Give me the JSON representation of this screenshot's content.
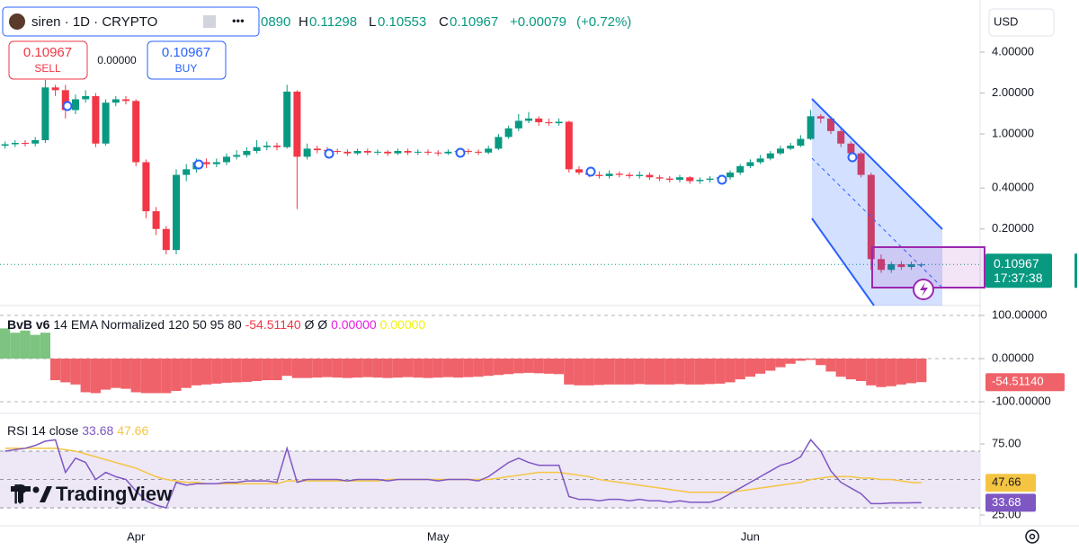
{
  "header": {
    "symbol": "siren · 1D · CRYPTO",
    "open_fragment": "0890",
    "h": "H",
    "l": "L",
    "c": "C",
    "change": "+0.00079",
    "change_pct": "(+0.72%)"
  },
  "trade": {
    "sell_price": "0.10967",
    "sell": "SELL",
    "spread": "0.00000",
    "buy_price": "0.10967",
    "buy": "BUY"
  },
  "currency": "USD",
  "logo": "TradingView",
  "chart_data": [
    {
      "type": "candlestick",
      "log_scale": true,
      "categories": [
        null,
        null,
        null,
        null,
        null,
        null,
        null,
        null,
        null,
        null,
        null,
        null,
        null,
        "Apr",
        null,
        null,
        null,
        null,
        null,
        null,
        null,
        null,
        null,
        null,
        null,
        null,
        null,
        null,
        null,
        null,
        null,
        null,
        null,
        null,
        null,
        null,
        null,
        null,
        null,
        null,
        null,
        null,
        null,
        "May",
        null,
        null,
        null,
        null,
        null,
        null,
        null,
        null,
        null,
        null,
        null,
        null,
        null,
        null,
        null,
        null,
        null,
        null,
        null,
        null,
        null,
        null,
        null,
        null,
        null,
        null,
        null,
        null,
        null,
        null,
        "Jun",
        null,
        null,
        null,
        null,
        null,
        null,
        null,
        null,
        null,
        null,
        null,
        null,
        null,
        null,
        null,
        null,
        null
      ],
      "open": [
        0.82,
        0.84,
        0.86,
        0.85,
        0.9,
        2.2,
        2.1,
        1.5,
        1.8,
        1.9,
        0.85,
        1.7,
        1.8,
        1.75,
        0.62,
        0.27,
        0.2,
        0.14,
        0.5,
        0.55,
        0.62,
        0.6,
        0.62,
        0.68,
        0.7,
        0.75,
        0.8,
        0.82,
        0.8,
        2.05,
        0.68,
        0.78,
        0.76,
        0.75,
        0.74,
        0.72,
        0.75,
        0.73,
        0.74,
        0.72,
        0.75,
        0.73,
        0.74,
        0.73,
        0.72,
        0.74,
        0.75,
        0.74,
        0.73,
        0.78,
        0.95,
        1.1,
        1.25,
        1.3,
        1.22,
        1.2,
        1.23,
        0.55,
        0.52,
        0.5,
        0.49,
        0.51,
        0.5,
        0.49,
        0.5,
        0.48,
        0.47,
        0.46,
        0.48,
        0.45,
        0.46,
        0.47,
        0.48,
        0.52,
        0.58,
        0.62,
        0.66,
        0.72,
        0.78,
        0.82,
        0.92,
        1.35,
        1.3,
        1.05,
        0.85,
        0.72,
        0.5,
        0.12,
        0.1,
        0.11,
        0.105,
        0.1089
      ],
      "high": [
        0.88,
        0.9,
        0.9,
        0.95,
        2.5,
        2.3,
        2.3,
        1.95,
        2.1,
        2.0,
        1.8,
        1.9,
        1.9,
        1.8,
        0.65,
        0.29,
        0.21,
        0.55,
        0.6,
        0.66,
        0.66,
        0.66,
        0.72,
        0.76,
        0.8,
        0.9,
        0.88,
        0.86,
        2.3,
        2.1,
        0.85,
        0.82,
        0.8,
        0.78,
        0.77,
        0.78,
        0.78,
        0.77,
        0.76,
        0.78,
        0.78,
        0.77,
        0.77,
        0.76,
        0.77,
        0.78,
        0.78,
        0.77,
        0.82,
        1.0,
        1.15,
        1.4,
        1.45,
        1.35,
        1.3,
        1.3,
        1.25,
        0.58,
        0.55,
        0.53,
        0.54,
        0.53,
        0.52,
        0.53,
        0.52,
        0.5,
        0.49,
        0.5,
        0.49,
        0.48,
        0.49,
        0.5,
        0.54,
        0.6,
        0.65,
        0.7,
        0.75,
        0.82,
        0.86,
        0.98,
        1.5,
        1.4,
        1.35,
        1.1,
        0.88,
        0.74,
        0.52,
        0.13,
        0.115,
        0.116,
        0.115,
        0.11298
      ],
      "low": [
        0.78,
        0.8,
        0.81,
        0.81,
        0.86,
        1.9,
        1.3,
        1.4,
        1.7,
        0.8,
        0.82,
        1.6,
        1.65,
        0.58,
        0.24,
        0.18,
        0.13,
        0.13,
        0.45,
        0.52,
        0.56,
        0.57,
        0.59,
        0.65,
        0.67,
        0.72,
        0.76,
        0.76,
        0.78,
        0.28,
        0.65,
        0.72,
        0.72,
        0.71,
        0.69,
        0.7,
        0.7,
        0.7,
        0.69,
        0.7,
        0.7,
        0.7,
        0.7,
        0.69,
        0.7,
        0.71,
        0.71,
        0.7,
        0.71,
        0.76,
        0.92,
        1.05,
        1.2,
        1.15,
        1.15,
        1.15,
        0.52,
        0.5,
        0.48,
        0.47,
        0.47,
        0.48,
        0.47,
        0.47,
        0.46,
        0.45,
        0.44,
        0.44,
        0.43,
        0.43,
        0.44,
        0.45,
        0.46,
        0.5,
        0.56,
        0.6,
        0.64,
        0.7,
        0.76,
        0.8,
        0.9,
        1.2,
        1.0,
        0.8,
        0.68,
        0.48,
        0.1,
        0.095,
        0.095,
        0.1,
        0.1,
        0.10553
      ],
      "close": [
        0.84,
        0.86,
        0.85,
        0.9,
        2.2,
        2.1,
        1.5,
        1.8,
        1.9,
        0.85,
        1.7,
        1.8,
        1.75,
        0.62,
        0.27,
        0.2,
        0.14,
        0.5,
        0.55,
        0.62,
        0.6,
        0.62,
        0.68,
        0.7,
        0.75,
        0.8,
        0.82,
        0.8,
        2.05,
        0.68,
        0.78,
        0.76,
        0.75,
        0.74,
        0.72,
        0.75,
        0.73,
        0.74,
        0.72,
        0.75,
        0.73,
        0.74,
        0.73,
        0.72,
        0.74,
        0.75,
        0.74,
        0.73,
        0.78,
        0.95,
        1.1,
        1.25,
        1.3,
        1.22,
        1.2,
        1.23,
        0.55,
        0.52,
        0.5,
        0.49,
        0.51,
        0.5,
        0.49,
        0.5,
        0.48,
        0.47,
        0.46,
        0.48,
        0.45,
        0.46,
        0.47,
        0.48,
        0.52,
        0.58,
        0.62,
        0.66,
        0.72,
        0.78,
        0.82,
        0.92,
        1.35,
        1.3,
        1.05,
        0.85,
        0.72,
        0.5,
        0.12,
        0.1,
        0.11,
        0.105,
        0.11,
        0.10967
      ],
      "up_color": "#089981",
      "down_color": "#f23645",
      "ylim": [
        0.0563,
        8.57
      ],
      "yticks": [
        {
          "value": 4,
          "label": "4.00000"
        },
        {
          "value": 2,
          "label": "2.00000"
        },
        {
          "value": 1,
          "label": "1.00000"
        },
        {
          "value": 0.4,
          "label": "0.40000"
        },
        {
          "value": 0.2,
          "label": "0.20000"
        }
      ],
      "countdown": "17:37:38"
    },
    {
      "type": "histogram",
      "title": "BvB v6",
      "subtitle": "14 EMA Normalized 120 50 95 80",
      "legend_value": "-54.51140",
      "legend_extra": [
        {
          "text": "Ø Ø",
          "color": "#131722"
        },
        {
          "text": "0.00000",
          "color": "#e91ee6"
        },
        {
          "text": "0.00000",
          "color": "#f2f20a"
        }
      ],
      "values": [
        70,
        60,
        65,
        55,
        60,
        -50,
        -55,
        -60,
        -78,
        -80,
        -72,
        -68,
        -70,
        -78,
        -80,
        -80,
        -80,
        -75,
        -68,
        -62,
        -60,
        -58,
        -56,
        -55,
        -54,
        -52,
        -50,
        -50,
        -40,
        -45,
        -45,
        -44,
        -43,
        -44,
        -45,
        -44,
        -43,
        -44,
        -45,
        -44,
        -43,
        -44,
        -45,
        -44,
        -43,
        -44,
        -43,
        -42,
        -40,
        -38,
        -36,
        -34,
        -33,
        -34,
        -35,
        -36,
        -60,
        -62,
        -62,
        -61,
        -60,
        -60,
        -60,
        -59,
        -60,
        -60,
        -60,
        -59,
        -60,
        -60,
        -59,
        -58,
        -55,
        -48,
        -42,
        -35,
        -28,
        -20,
        -12,
        -5,
        -3,
        -15,
        -30,
        -42,
        -48,
        -52,
        -62,
        -66,
        -64,
        -60,
        -57,
        -54.5114
      ],
      "pos_color": "#7cc47f",
      "neg_color": "#f0626a",
      "ylim": [
        -127,
        118.75
      ],
      "yticks": [
        {
          "value": 100,
          "label": "100.00000"
        },
        {
          "value": 0,
          "label": "0.00000"
        },
        {
          "value": -100,
          "label": "-100.00000"
        }
      ]
    },
    {
      "type": "line",
      "title": "RSI 14 close",
      "series": [
        {
          "color": "#7e57c2",
          "values": [
            70,
            71,
            72,
            74,
            77,
            78,
            55,
            65,
            62,
            50,
            55,
            52,
            50,
            42,
            35,
            32,
            30,
            48,
            46,
            47,
            47,
            47,
            48,
            48,
            49,
            49,
            49,
            48,
            72,
            48,
            50,
            50,
            50,
            50,
            49,
            50,
            50,
            50,
            49,
            50,
            50,
            50,
            50,
            49,
            50,
            50,
            50,
            49,
            52,
            57,
            62,
            65,
            62,
            60,
            60,
            60,
            38,
            36,
            36,
            35,
            36,
            36,
            35,
            36,
            35,
            35,
            34,
            35,
            34,
            34,
            34,
            36,
            40,
            44,
            48,
            52,
            56,
            60,
            62,
            66,
            78,
            70,
            56,
            48,
            44,
            40,
            33,
            33,
            33.5,
            33.5,
            33.6,
            33.68
          ]
        },
        {
          "color": "#f5c542",
          "values": [
            72,
            72,
            72,
            72,
            72,
            72,
            71,
            70,
            68,
            66,
            64,
            62,
            60,
            58,
            55,
            52,
            50,
            49,
            48,
            48,
            47,
            47,
            47,
            47,
            47,
            47,
            47,
            47,
            49,
            49,
            49,
            49,
            49,
            49,
            49,
            49,
            49,
            49,
            50,
            50,
            50,
            50,
            50,
            50,
            50,
            50,
            50,
            50,
            50,
            51,
            52,
            53,
            54,
            55,
            55,
            55,
            54,
            53,
            52,
            50,
            49,
            48,
            47,
            46,
            45,
            44,
            43,
            42,
            41,
            41,
            41,
            41,
            41,
            42,
            43,
            44,
            45,
            46,
            47,
            48,
            50,
            51,
            52,
            52,
            52,
            51,
            51,
            50,
            50,
            49,
            48,
            47.66
          ]
        }
      ],
      "hlines": [
        70,
        50,
        30
      ],
      "band_color": "#ede7f6",
      "ylim": [
        18.7,
        95.3
      ],
      "yticks": [
        {
          "value": 75,
          "label": "75.00"
        },
        {
          "value": 25,
          "label": "25.00"
        }
      ]
    }
  ]
}
